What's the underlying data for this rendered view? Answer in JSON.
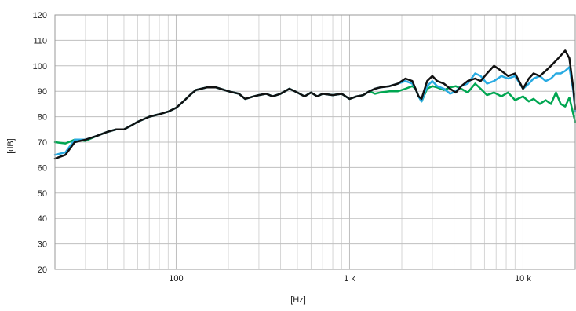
{
  "chart_data": {
    "type": "line",
    "xlabel": "[Hz]",
    "ylabel": "[dB]",
    "x_scale": "log",
    "xlim": [
      20,
      20000
    ],
    "ylim": [
      20,
      120
    ],
    "y_ticks": [
      20,
      30,
      40,
      50,
      60,
      70,
      80,
      90,
      100,
      110,
      120
    ],
    "x_ticks": [
      {
        "value": 100,
        "label": "100"
      },
      {
        "value": 1000,
        "label": "1 k"
      },
      {
        "value": 10000,
        "label": "10 k"
      }
    ],
    "grid": true,
    "legend": "none",
    "series": [
      {
        "color": "#00a651",
        "points": [
          [
            20,
            70
          ],
          [
            23,
            69.5
          ],
          [
            26,
            71
          ],
          [
            30,
            70.5
          ],
          [
            35,
            72.5
          ],
          [
            40,
            74
          ],
          [
            45,
            75
          ],
          [
            50,
            75
          ],
          [
            55,
            76.5
          ],
          [
            60,
            78
          ],
          [
            70,
            80
          ],
          [
            80,
            81
          ],
          [
            90,
            82
          ],
          [
            100,
            83.5
          ],
          [
            110,
            86
          ],
          [
            120,
            88.5
          ],
          [
            130,
            90.5
          ],
          [
            150,
            91.5
          ],
          [
            170,
            91.5
          ],
          [
            180,
            91
          ],
          [
            200,
            90
          ],
          [
            230,
            89
          ],
          [
            250,
            87
          ],
          [
            280,
            88
          ],
          [
            300,
            88.5
          ],
          [
            330,
            89
          ],
          [
            360,
            88
          ],
          [
            400,
            89
          ],
          [
            450,
            91
          ],
          [
            500,
            89.5
          ],
          [
            550,
            88
          ],
          [
            600,
            89.5
          ],
          [
            650,
            88
          ],
          [
            700,
            89
          ],
          [
            800,
            88.5
          ],
          [
            900,
            89
          ],
          [
            1000,
            87
          ],
          [
            1100,
            88
          ],
          [
            1200,
            88.5
          ],
          [
            1300,
            90
          ],
          [
            1400,
            89
          ],
          [
            1500,
            89.5
          ],
          [
            1700,
            90
          ],
          [
            1900,
            90
          ],
          [
            2100,
            91
          ],
          [
            2300,
            92
          ],
          [
            2400,
            91
          ],
          [
            2500,
            88
          ],
          [
            2600,
            86
          ],
          [
            2800,
            91
          ],
          [
            3000,
            92
          ],
          [
            3200,
            91.5
          ],
          [
            3500,
            90.5
          ],
          [
            3800,
            91.5
          ],
          [
            4100,
            92
          ],
          [
            4400,
            91
          ],
          [
            4800,
            89.5
          ],
          [
            5300,
            93
          ],
          [
            5700,
            91
          ],
          [
            6200,
            88.5
          ],
          [
            6800,
            89.5
          ],
          [
            7500,
            88
          ],
          [
            8200,
            89.5
          ],
          [
            9000,
            86.5
          ],
          [
            10000,
            88
          ],
          [
            10800,
            86
          ],
          [
            11500,
            87
          ],
          [
            12500,
            85
          ],
          [
            13500,
            86.5
          ],
          [
            14500,
            85
          ],
          [
            15500,
            89.5
          ],
          [
            16500,
            85
          ],
          [
            17500,
            84
          ],
          [
            18500,
            87.5
          ],
          [
            19500,
            81
          ],
          [
            20000,
            78
          ]
        ]
      },
      {
        "color": "#29abe2",
        "points": [
          [
            20,
            65
          ],
          [
            23,
            66
          ],
          [
            26,
            71
          ],
          [
            30,
            71
          ],
          [
            35,
            72.5
          ],
          [
            40,
            74
          ],
          [
            45,
            75
          ],
          [
            50,
            75
          ],
          [
            55,
            76.5
          ],
          [
            60,
            78
          ],
          [
            70,
            80
          ],
          [
            80,
            81
          ],
          [
            90,
            82
          ],
          [
            100,
            83.5
          ],
          [
            110,
            86
          ],
          [
            120,
            88.5
          ],
          [
            130,
            90.5
          ],
          [
            150,
            91.5
          ],
          [
            170,
            91.5
          ],
          [
            180,
            91
          ],
          [
            200,
            90
          ],
          [
            230,
            89
          ],
          [
            250,
            87
          ],
          [
            280,
            88
          ],
          [
            300,
            88.5
          ],
          [
            330,
            89
          ],
          [
            360,
            88
          ],
          [
            400,
            89
          ],
          [
            450,
            91
          ],
          [
            500,
            89.5
          ],
          [
            550,
            88
          ],
          [
            600,
            89.5
          ],
          [
            650,
            88
          ],
          [
            700,
            89
          ],
          [
            800,
            88.5
          ],
          [
            900,
            89
          ],
          [
            1000,
            87
          ],
          [
            1100,
            88
          ],
          [
            1200,
            88.5
          ],
          [
            1300,
            90
          ],
          [
            1400,
            91
          ],
          [
            1500,
            91.5
          ],
          [
            1700,
            92
          ],
          [
            1900,
            93
          ],
          [
            2100,
            94
          ],
          [
            2300,
            93
          ],
          [
            2400,
            91
          ],
          [
            2500,
            88
          ],
          [
            2600,
            86
          ],
          [
            2800,
            92
          ],
          [
            3000,
            94
          ],
          [
            3200,
            92
          ],
          [
            3500,
            91
          ],
          [
            3800,
            89
          ],
          [
            4100,
            90
          ],
          [
            4400,
            92
          ],
          [
            4800,
            93
          ],
          [
            5300,
            97
          ],
          [
            5700,
            96
          ],
          [
            6200,
            93
          ],
          [
            6800,
            94
          ],
          [
            7500,
            96
          ],
          [
            8200,
            95
          ],
          [
            9000,
            96
          ],
          [
            10000,
            91
          ],
          [
            10800,
            93
          ],
          [
            11500,
            95
          ],
          [
            12500,
            96
          ],
          [
            13500,
            94
          ],
          [
            14500,
            95
          ],
          [
            15500,
            97
          ],
          [
            16500,
            97
          ],
          [
            17500,
            98
          ],
          [
            18500,
            99.5
          ],
          [
            19500,
            90
          ],
          [
            20000,
            82
          ]
        ]
      },
      {
        "color": "#111111",
        "points": [
          [
            20,
            63.5
          ],
          [
            23,
            65
          ],
          [
            26,
            70
          ],
          [
            30,
            71
          ],
          [
            35,
            72.5
          ],
          [
            40,
            74
          ],
          [
            45,
            75
          ],
          [
            50,
            75
          ],
          [
            55,
            76.5
          ],
          [
            60,
            78
          ],
          [
            70,
            80
          ],
          [
            80,
            81
          ],
          [
            90,
            82
          ],
          [
            100,
            83.5
          ],
          [
            110,
            86
          ],
          [
            120,
            88.5
          ],
          [
            130,
            90.5
          ],
          [
            150,
            91.5
          ],
          [
            170,
            91.5
          ],
          [
            180,
            91
          ],
          [
            200,
            90
          ],
          [
            230,
            89
          ],
          [
            250,
            87
          ],
          [
            280,
            88
          ],
          [
            300,
            88.5
          ],
          [
            330,
            89
          ],
          [
            360,
            88
          ],
          [
            400,
            89
          ],
          [
            450,
            91
          ],
          [
            500,
            89.5
          ],
          [
            550,
            88
          ],
          [
            600,
            89.5
          ],
          [
            650,
            88
          ],
          [
            700,
            89
          ],
          [
            800,
            88.5
          ],
          [
            900,
            89
          ],
          [
            1000,
            87
          ],
          [
            1100,
            88
          ],
          [
            1200,
            88.5
          ],
          [
            1300,
            90
          ],
          [
            1400,
            91
          ],
          [
            1500,
            91.5
          ],
          [
            1700,
            92
          ],
          [
            1900,
            93
          ],
          [
            2100,
            95
          ],
          [
            2300,
            94
          ],
          [
            2400,
            91
          ],
          [
            2500,
            88
          ],
          [
            2600,
            87
          ],
          [
            2800,
            94
          ],
          [
            3000,
            96
          ],
          [
            3200,
            94
          ],
          [
            3500,
            93
          ],
          [
            3800,
            91
          ],
          [
            4100,
            89.5
          ],
          [
            4400,
            92
          ],
          [
            4800,
            94
          ],
          [
            5300,
            95
          ],
          [
            5700,
            94
          ],
          [
            6200,
            97
          ],
          [
            6800,
            100
          ],
          [
            7500,
            98
          ],
          [
            8200,
            96
          ],
          [
            9000,
            97
          ],
          [
            10000,
            91
          ],
          [
            10800,
            95
          ],
          [
            11500,
            97
          ],
          [
            12500,
            96
          ],
          [
            13500,
            98
          ],
          [
            14500,
            100
          ],
          [
            15500,
            102
          ],
          [
            16500,
            104
          ],
          [
            17500,
            106
          ],
          [
            18500,
            103
          ],
          [
            19500,
            91
          ],
          [
            20000,
            83
          ]
        ]
      }
    ]
  }
}
